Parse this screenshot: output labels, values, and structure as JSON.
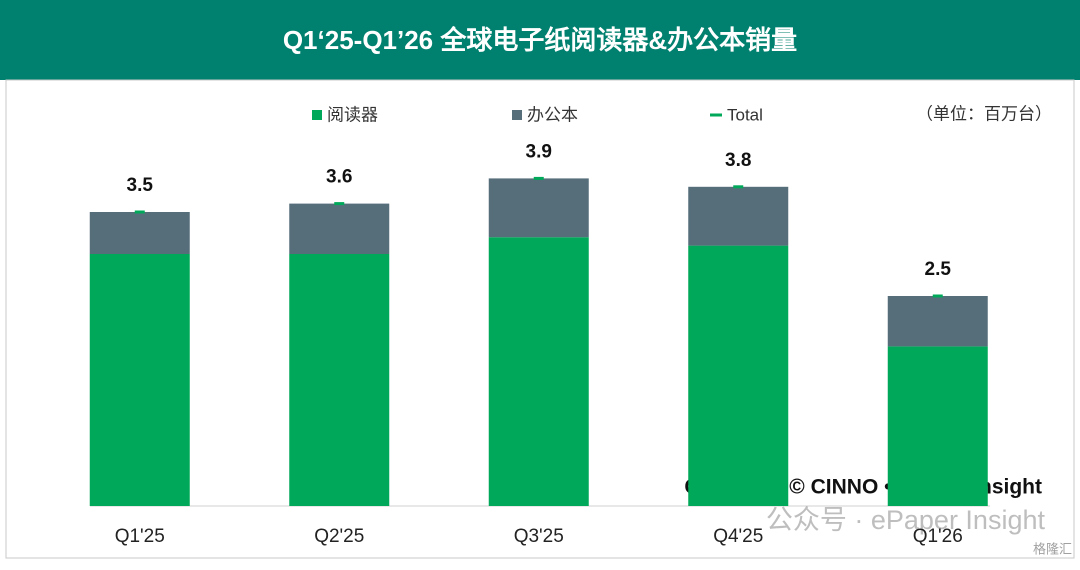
{
  "chart_data": {
    "type": "stacked-bar",
    "title": "Q1‘25-Q1’26 全球电子纸阅读器&办公本销量",
    "unit_note": "（单位：百万台）",
    "categories": [
      "Q1'25",
      "Q2'25",
      "Q3'25",
      "Q4'25",
      "Q1'26"
    ],
    "series": [
      {
        "name": "阅读器",
        "color": "#00a859",
        "values": [
          3.0,
          3.0,
          3.2,
          3.1,
          1.9
        ]
      },
      {
        "name": "办公本",
        "color": "#566e7a",
        "values": [
          0.5,
          0.6,
          0.7,
          0.7,
          0.6
        ]
      },
      {
        "name": "Total",
        "color": "#00a859",
        "values": [
          3.5,
          3.6,
          3.9,
          3.8,
          2.5
        ]
      }
    ],
    "copyright": "Copyright © CINNO • ePaper Insight",
    "watermark": "公众号 · ePaper Insight",
    "logo": "格隆汇"
  }
}
